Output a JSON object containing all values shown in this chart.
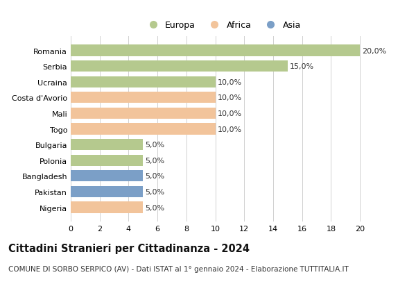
{
  "categories": [
    "Romania",
    "Serbia",
    "Ucraina",
    "Costa d'Avorio",
    "Mali",
    "Togo",
    "Bulgaria",
    "Polonia",
    "Bangladesh",
    "Pakistan",
    "Nigeria"
  ],
  "values": [
    20.0,
    15.0,
    10.0,
    10.0,
    10.0,
    10.0,
    5.0,
    5.0,
    5.0,
    5.0,
    5.0
  ],
  "continents": [
    "Europa",
    "Europa",
    "Europa",
    "Africa",
    "Africa",
    "Africa",
    "Europa",
    "Europa",
    "Asia",
    "Asia",
    "Africa"
  ],
  "colors": {
    "Europa": "#b5c98e",
    "Africa": "#f2c49b",
    "Asia": "#7b9fc7"
  },
  "legend_labels": [
    "Europa",
    "Africa",
    "Asia"
  ],
  "title": "Cittadini Stranieri per Cittadinanza - 2024",
  "subtitle": "COMUNE DI SORBO SERPICO (AV) - Dati ISTAT al 1° gennaio 2024 - Elaborazione TUTTITALIA.IT",
  "xlim": [
    0,
    21
  ],
  "xticks": [
    0,
    2,
    4,
    6,
    8,
    10,
    12,
    14,
    16,
    18,
    20
  ],
  "grid_color": "#d0d0d0",
  "background_color": "#ffffff",
  "bar_height": 0.72,
  "label_fontsize": 8,
  "title_fontsize": 10.5,
  "subtitle_fontsize": 7.5,
  "ytick_fontsize": 8,
  "xtick_fontsize": 8,
  "legend_fontsize": 9
}
